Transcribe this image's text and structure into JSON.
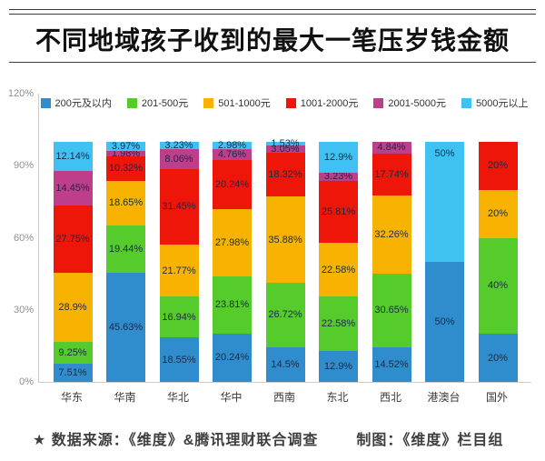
{
  "header": {
    "title": "不同地域孩子收到的最大一笔压岁钱金额"
  },
  "footer": {
    "source": "★ 数据来源：《维度》&腾讯理财联合调查",
    "credit": "制图：《维度》栏目组"
  },
  "chart_data": {
    "type": "bar",
    "stacked": true,
    "title": "不同地域孩子收到的最大一笔压岁钱金额",
    "categories": [
      "华东",
      "华南",
      "华北",
      "华中",
      "西南",
      "东北",
      "西北",
      "港澳台",
      "国外"
    ],
    "series": [
      {
        "name": "200元及以内",
        "color": "#2f8dcd",
        "values": [
          7.51,
          45.63,
          18.55,
          20.24,
          14.5,
          12.9,
          14.52,
          50,
          20
        ]
      },
      {
        "name": "201-500元",
        "color": "#55cb2c",
        "values": [
          9.25,
          19.44,
          16.94,
          23.81,
          26.72,
          22.58,
          30.65,
          0,
          40
        ]
      },
      {
        "name": "501-1000元",
        "color": "#f8b301",
        "values": [
          28.9,
          18.65,
          21.77,
          27.98,
          35.88,
          22.58,
          32.26,
          0,
          20
        ]
      },
      {
        "name": "1001-2000元",
        "color": "#ee1509",
        "values": [
          27.75,
          10.32,
          31.45,
          20.24,
          18.32,
          25.81,
          17.74,
          0,
          20
        ]
      },
      {
        "name": "2001-5000元",
        "color": "#bf3e8c",
        "values": [
          14.45,
          1.98,
          8.06,
          4.76,
          3.05,
          3.23,
          4.84,
          0,
          0
        ]
      },
      {
        "name": "5000元以上",
        "color": "#3fc1f2",
        "values": [
          12.14,
          3.97,
          3.23,
          2.98,
          1.53,
          12.9,
          0,
          50,
          0
        ]
      }
    ],
    "y_ticks": [
      "0%",
      "30%",
      "60%",
      "90%",
      "120%"
    ],
    "ylim": [
      0,
      120
    ],
    "xlabel": "",
    "ylabel": "",
    "grid": false,
    "legend_position": "top",
    "bar_label_color": "#1b2a44",
    "label_overrides": [
      {
        "series_index": 5,
        "category_index": 7,
        "position": "top"
      }
    ]
  }
}
